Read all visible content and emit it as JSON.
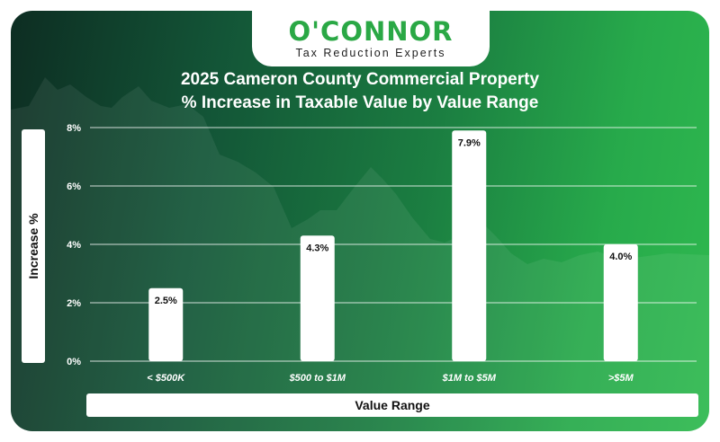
{
  "brand": {
    "name": "O'CONNOR",
    "tagline": "Tax Reduction Experts"
  },
  "colors": {
    "brand_green": "#2aa845",
    "bar_fill": "#ffffff",
    "grid": "#ffffff",
    "text": "#ffffff"
  },
  "chart_data": {
    "type": "bar",
    "title": "2025 Cameron County Commercial Property",
    "subtitle": "% Increase in Taxable Value by Value Range",
    "xlabel": "Value Range",
    "ylabel": "Increase %",
    "categories": [
      "< $500K",
      "$500 to $1M",
      "$1M to $5M",
      ">$5M"
    ],
    "values": [
      2.5,
      4.3,
      7.9,
      4.0
    ],
    "value_labels": [
      "2.5%",
      "4.3%",
      "7.9%",
      "4.0%"
    ],
    "ylim": [
      0,
      8
    ],
    "yticks": [
      0,
      2,
      4,
      6,
      8
    ],
    "ytick_labels": [
      "0%",
      "2%",
      "4%",
      "6%",
      "8%"
    ],
    "grid": true,
    "legend": "none"
  }
}
